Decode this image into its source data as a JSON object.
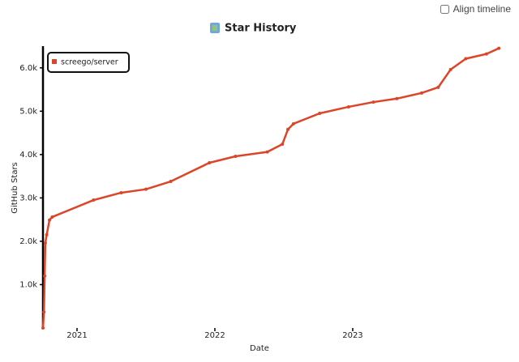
{
  "controls": {
    "align_timeline": "Align timeline"
  },
  "chart_data": {
    "type": "line",
    "title": "Star History",
    "x_label": "Date",
    "y_label": "GitHub Stars",
    "x": [
      2020.753,
      2020.76,
      2020.765,
      2020.77,
      2020.78,
      2020.8,
      2020.82,
      2021.12,
      2021.32,
      2021.5,
      2021.68,
      2021.96,
      2022.15,
      2022.38,
      2022.49,
      2022.53,
      2022.57,
      2022.76,
      2022.97,
      2023.15,
      2023.32,
      2023.5,
      2023.62,
      2023.71,
      2023.82,
      2023.97,
      2024.06
    ],
    "series": [
      {
        "name": "screego/server",
        "color": "#dd4528",
        "values": [
          0,
          370,
          1200,
          1960,
          2150,
          2490,
          2560,
          2950,
          3120,
          3200,
          3380,
          3810,
          3960,
          4060,
          4240,
          4580,
          4710,
          4950,
          5100,
          5210,
          5290,
          5420,
          5550,
          5960,
          6210,
          6320,
          6450
        ]
      }
    ],
    "xlim": [
      2020.753,
      2024.118
    ],
    "xticks": [
      2021,
      2022,
      2023
    ],
    "ylim": [
      0,
      6500
    ],
    "yticks": [
      {
        "value": 1000,
        "label": "1.0k"
      },
      {
        "value": 2000,
        "label": "2.0k"
      },
      {
        "value": 3000,
        "label": "3.0k"
      },
      {
        "value": 4000,
        "label": "4.0k"
      },
      {
        "value": 5000,
        "label": "5.0k"
      },
      {
        "value": 6000,
        "label": "6.0k"
      }
    ],
    "legend": "top-left"
  }
}
